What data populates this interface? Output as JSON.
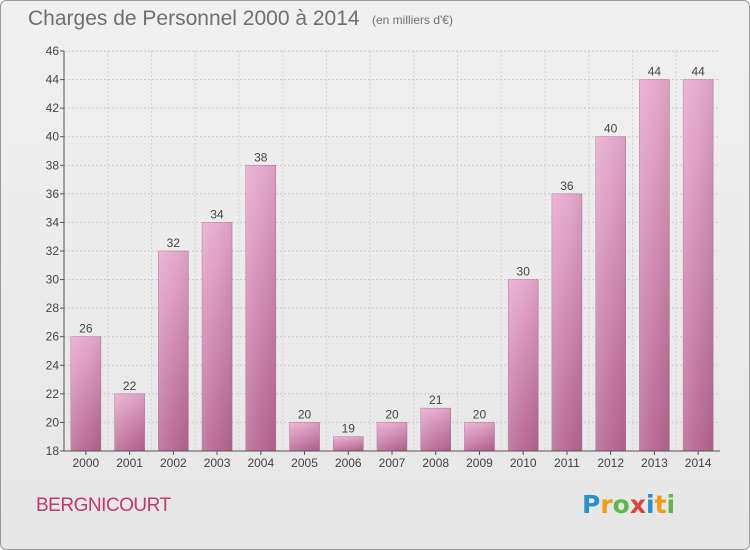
{
  "chart_data": {
    "type": "bar",
    "title": "Charges de Personnel 2000 à 2014",
    "subtitle": "(en milliers d'€)",
    "categories": [
      "2000",
      "2001",
      "2002",
      "2003",
      "2004",
      "2005",
      "2006",
      "2007",
      "2008",
      "2009",
      "2010",
      "2011",
      "2012",
      "2013",
      "2014"
    ],
    "values": [
      26,
      22,
      32,
      34,
      38,
      20,
      19,
      20,
      21,
      20,
      30,
      36,
      40,
      44,
      44
    ],
    "ylim": [
      18,
      46
    ],
    "yticks": [
      18,
      20,
      22,
      24,
      26,
      28,
      30,
      32,
      34,
      36,
      38,
      40,
      42,
      44,
      46
    ],
    "grid": true,
    "bar_color": "#d88cb4",
    "data_labels": true
  },
  "commune": "BERGNICOURT",
  "logo": {
    "text": "Proxiti",
    "letters": [
      {
        "ch": "P",
        "color": "#2a8fd0"
      },
      {
        "ch": "r",
        "color": "#f39c12"
      },
      {
        "ch": "o",
        "color": "#5db84a"
      },
      {
        "ch": "x",
        "color": "#e0403a"
      },
      {
        "ch": "i",
        "color": "#2a8fd0"
      },
      {
        "ch": "t",
        "color": "#f39c12"
      },
      {
        "ch": "i",
        "color": "#5db84a"
      }
    ]
  }
}
